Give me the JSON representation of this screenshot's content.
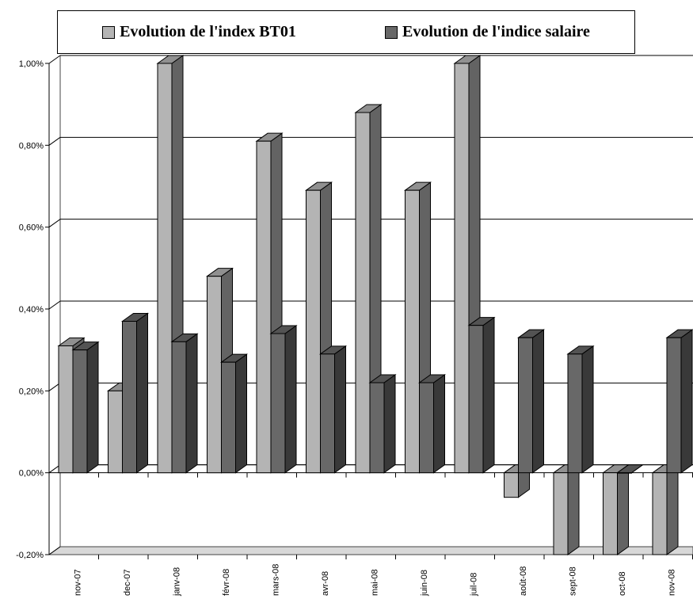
{
  "chart_data": {
    "type": "bar",
    "categories": [
      "nov-07",
      "dec-07",
      "janv-08",
      "févr-08",
      "mars-08",
      "avr-08",
      "mai-08",
      "juin-08",
      "juil-08",
      "août-08",
      "sept-08",
      "oct-08",
      "nov-08"
    ],
    "series": [
      {
        "name": "Evolution de l'index BT01",
        "color": "#b4b4b4",
        "values": [
          0.31,
          0.2,
          1.0,
          0.48,
          0.81,
          0.69,
          0.88,
          0.69,
          1.0,
          -0.06,
          -0.2,
          -0.2,
          -0.2
        ]
      },
      {
        "name": "Evolution de l'indice salaire",
        "color": "#686868",
        "values": [
          0.3,
          0.37,
          0.32,
          0.27,
          0.34,
          0.29,
          0.22,
          0.22,
          0.36,
          0.33,
          0.29,
          0.0,
          0.33
        ]
      }
    ],
    "yticks": [
      "1,00%",
      "0,80%",
      "0,60%",
      "0,40%",
      "0,20%",
      "0,00%",
      "-0,20%"
    ],
    "ylim": [
      -0.2,
      1.0
    ],
    "grid": true,
    "legend_position": "top"
  }
}
